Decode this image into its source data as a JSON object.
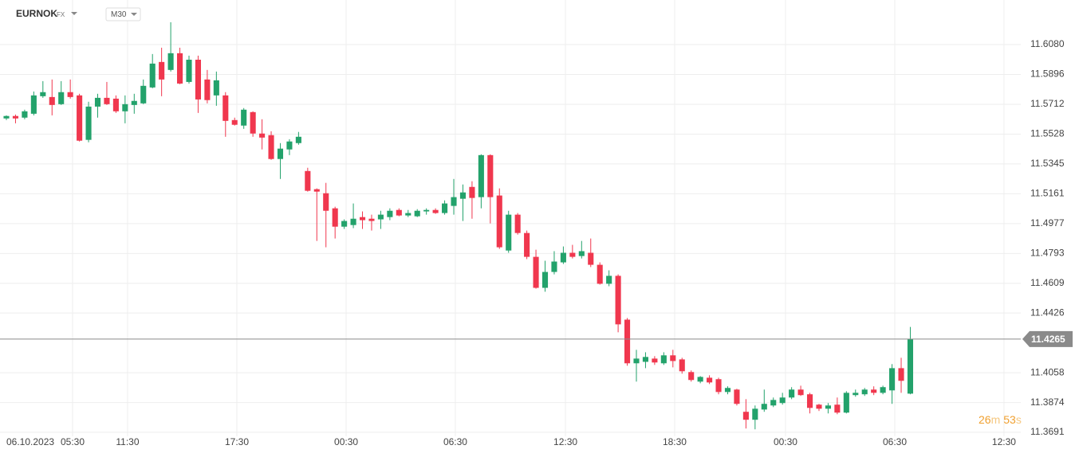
{
  "chart_data": {
    "type": "candlestick",
    "symbol": "EURNOK",
    "market": "FX",
    "timeframe": "M30",
    "up_color": "#23a26b",
    "down_color": "#f0374e",
    "grid": true,
    "ylim": [
      11.3666,
      11.6355
    ],
    "xlim": [
      -0.7,
      111.1
    ],
    "yticks": [
      {
        "value": 11.608,
        "label": "11.6080"
      },
      11.5896,
      11.5712,
      11.5528,
      11.5345,
      11.5161,
      11.4977,
      11.4793,
      11.4609,
      11.4426,
      11.4058,
      11.3874,
      11.3691
    ],
    "xticks": [
      {
        "value": 0,
        "label": "06.10.2023"
      },
      {
        "value": 7.25,
        "label": "05:30"
      },
      {
        "value": 13.27,
        "label": "11:30"
      },
      {
        "value": 25.24,
        "label": "17:30"
      },
      {
        "value": 37.21,
        "label": "00:30"
      },
      {
        "value": 49.17,
        "label": "06:30"
      },
      {
        "value": 61.23,
        "label": "12:30"
      },
      {
        "value": 73.19,
        "label": "18:30"
      },
      {
        "value": 85.33,
        "label": "00:30"
      },
      {
        "value": 97.3,
        "label": "06:30"
      },
      {
        "value": 109.26,
        "label": "12:30"
      }
    ],
    "open": [
      11.5625,
      11.564,
      11.563,
      11.5654,
      11.5762,
      11.5757,
      11.5713,
      11.5787,
      11.5767,
      11.5493,
      11.5698,
      11.5752,
      11.5747,
      11.5669,
      11.5708,
      11.5718,
      11.5816,
      11.5973,
      11.5924,
      11.6027,
      11.585,
      11.5987,
      11.5865,
      11.5767,
      11.5767,
      11.5615,
      11.5581,
      11.5664,
      11.5532,
      11.5522,
      11.5375,
      11.5434,
      11.5473,
      11.5301,
      11.5189,
      11.5164,
      11.5071,
      11.4958,
      11.4968,
      11.5017,
      11.5007,
      11.5003,
      11.5017,
      11.5061,
      11.5027,
      11.5022,
      11.5052,
      11.5061,
      11.5042,
      11.5086,
      11.513,
      11.5203,
      11.514,
      11.5399,
      11.515,
      11.4811,
      11.5032,
      11.4919,
      11.4772,
      11.4581,
      11.4679,
      11.4738,
      11.4797,
      11.4777,
      11.4797,
      11.4723,
      11.4606,
      11.4655,
      11.4385,
      11.4116,
      11.4125,
      11.4145,
      11.4116,
      11.4165,
      11.414,
      11.4062,
      11.4003,
      11.4027,
      11.4018,
      11.3939,
      11.3954,
      11.3817,
      11.3768,
      11.3831,
      11.3856,
      11.3871,
      11.3905,
      11.3954,
      11.3925,
      11.3861,
      11.3836,
      11.3861,
      11.3812,
      11.392,
      11.3925,
      11.3954,
      11.3934,
      11.3949,
      11.4086,
      11.3929
    ],
    "high": [
      11.5644,
      11.5649,
      11.5679,
      11.5791,
      11.5855,
      11.5865,
      11.5855,
      11.5865,
      11.5777,
      11.5728,
      11.5777,
      11.585,
      11.5767,
      11.5767,
      11.5777,
      11.5865,
      11.6022,
      11.6061,
      11.6218,
      11.6061,
      11.6012,
      11.6012,
      11.5924,
      11.5914,
      11.5787,
      11.563,
      11.5689,
      11.5669,
      11.562,
      11.5546,
      11.5473,
      11.5497,
      11.5542,
      11.5321,
      11.5194,
      11.5228,
      11.5081,
      11.5003,
      11.5101,
      11.5052,
      11.5032,
      11.5056,
      11.5071,
      11.5071,
      11.5061,
      11.5066,
      11.5071,
      11.5071,
      11.512,
      11.5252,
      11.5218,
      11.5238,
      11.5404,
      11.5404,
      11.5194,
      11.5056,
      11.5042,
      11.4934,
      11.4816,
      11.4748,
      11.4807,
      11.4836,
      11.4846,
      11.487,
      11.4885,
      11.4738,
      11.4689,
      11.4664,
      11.4395,
      11.4199,
      11.4184,
      11.416,
      11.4184,
      11.4199,
      11.415,
      11.4072,
      11.4037,
      11.4042,
      11.4027,
      11.3974,
      11.3959,
      11.3895,
      11.3856,
      11.3954,
      11.3905,
      11.3934,
      11.3969,
      11.3978,
      11.3934,
      11.3866,
      11.3871,
      11.3905,
      11.3944,
      11.3954,
      11.3964,
      11.3974,
      11.3978,
      11.4111,
      11.415,
      11.434
    ],
    "low": [
      11.5615,
      11.5595,
      11.562,
      11.5644,
      11.5752,
      11.5644,
      11.5708,
      11.5747,
      11.5483,
      11.5478,
      11.563,
      11.5708,
      11.5659,
      11.5595,
      11.5654,
      11.5713,
      11.5811,
      11.5762,
      11.5914,
      11.5836,
      11.584,
      11.5659,
      11.5718,
      11.5703,
      11.5512,
      11.5581,
      11.5561,
      11.5512,
      11.5434,
      11.537,
      11.5252,
      11.5399,
      11.5463,
      11.5174,
      11.487,
      11.4831,
      11.4885,
      11.4944,
      11.4949,
      11.4944,
      11.4934,
      11.4944,
      11.4998,
      11.5022,
      11.5017,
      11.5017,
      11.5032,
      11.5037,
      11.5032,
      11.5032,
      11.4993,
      11.5007,
      11.5071,
      11.4978,
      11.4821,
      11.4797,
      11.4909,
      11.4758,
      11.4576,
      11.4557,
      11.4664,
      11.4728,
      11.4762,
      11.4762,
      11.4709,
      11.4601,
      11.4591,
      11.4307,
      11.4101,
      11.4003,
      11.4086,
      11.4106,
      11.4106,
      11.4091,
      11.4052,
      11.4003,
      11.3993,
      11.3988,
      11.3925,
      11.3925,
      11.3856,
      11.3714,
      11.3709,
      11.3817,
      11.3846,
      11.3861,
      11.3895,
      11.3915,
      11.3807,
      11.3822,
      11.3807,
      11.3802,
      11.3807,
      11.391,
      11.3915,
      11.392,
      11.3925,
      11.3866,
      11.3934,
      11.3925
    ],
    "close": [
      11.564,
      11.5625,
      11.5669,
      11.5767,
      11.5787,
      11.5708,
      11.5787,
      11.5757,
      11.5488,
      11.5698,
      11.5752,
      11.5713,
      11.5669,
      11.5713,
      11.5733,
      11.5826,
      11.5963,
      11.5865,
      11.6027,
      11.584,
      11.5987,
      11.5742,
      11.5738,
      11.586,
      11.561,
      11.5586,
      11.5679,
      11.5532,
      11.5507,
      11.5375,
      11.5439,
      11.5483,
      11.5512,
      11.5179,
      11.5174,
      11.5056,
      11.4958,
      11.4993,
      11.5007,
      11.4998,
      11.4993,
      11.5032,
      11.5056,
      11.5027,
      11.5042,
      11.5056,
      11.5061,
      11.5042,
      11.5101,
      11.514,
      11.5169,
      11.5135,
      11.5399,
      11.514,
      11.4831,
      11.5032,
      11.4919,
      11.4772,
      11.4581,
      11.4679,
      11.4743,
      11.4797,
      11.4772,
      11.4807,
      11.4723,
      11.4606,
      11.4655,
      11.4356,
      11.4116,
      11.4145,
      11.4155,
      11.4121,
      11.4165,
      11.413,
      11.4067,
      11.4013,
      11.4032,
      11.3998,
      11.3939,
      11.3964,
      11.3866,
      11.3768,
      11.3836,
      11.3866,
      11.389,
      11.3905,
      11.3954,
      11.392,
      11.3841,
      11.3836,
      11.3856,
      11.3812,
      11.3934,
      11.3934,
      11.3954,
      11.3934,
      11.3969,
      11.4086,
      11.4008,
      11.4265
    ],
    "countdown": {
      "minutes": 26,
      "minutes_unit": "m",
      "seconds": 53,
      "seconds_unit": "s"
    }
  }
}
